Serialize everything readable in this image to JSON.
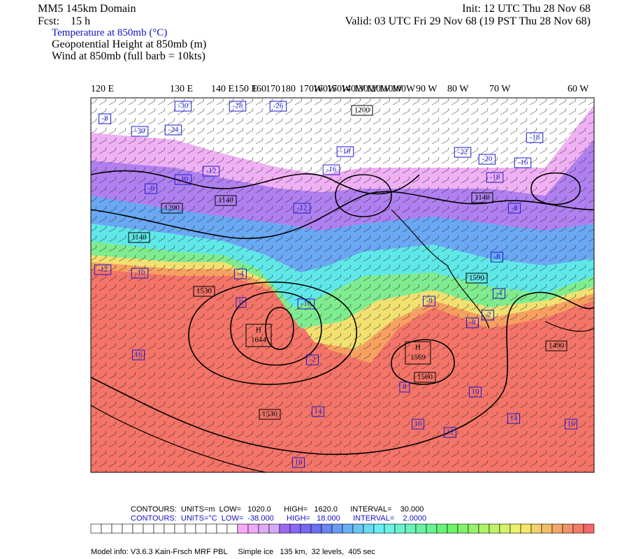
{
  "header": {
    "domain": "MM5 145km Domain",
    "forecast": "Fcst:    15 h",
    "init": "Init: 12 UTC Thu 28 Nov 68",
    "valid": "Valid: 03 UTC Fri 29 Nov 68 (19 PST Thu 28 Nov 68)",
    "fields": [
      "Temperature at 850mb (°C)",
      "Geopotential Height at 850mb (m)",
      "Wind at 850mb (full barb = 10kts)"
    ]
  },
  "map": {
    "longitude_labels": [
      "120 E",
      "130 E",
      "140 E",
      "150 E",
      "160",
      "170",
      "180",
      "170W",
      "160W",
      "150W",
      "140W",
      "130W",
      "120W",
      "110W",
      "100W",
      "90 W",
      "80 W",
      "70 W",
      "60 W"
    ],
    "height_labels": [
      "1200",
      "1140",
      "1200",
      "1140",
      "1140",
      "1530",
      "1590",
      "1560",
      "1530",
      "1490"
    ],
    "highs": [
      {
        "symbol": "H",
        "value": "1644"
      },
      {
        "symbol": "H",
        "value": "1569"
      }
    ],
    "temperature_labels": [
      "-30",
      "-28",
      "-26",
      "-8",
      "-30",
      "-24",
      "-18",
      "-16",
      "-22",
      "-20",
      "-16",
      "-18",
      "-12",
      "-6",
      "-10",
      "-12",
      "-18",
      "-8",
      "-12",
      "-10",
      "-4",
      "0",
      "-10",
      "-8",
      "-4",
      "-8",
      "-8",
      "-2",
      "16",
      "-2",
      "8",
      "10",
      "14",
      "14",
      "16",
      "10",
      "12",
      "16"
    ]
  },
  "footer": {
    "contours_height": "CONTOURS:  UNITS=m  LOW=   1020.0      HIGH=   1620.0      INTERVAL=    30.000",
    "contours_temperature": "CONTOURS:  UNITS=°C  LOW=  -38.000      HIGH=   18.000      INTERVAL=    2.0000",
    "model_info": "Model info: V3.6.3 Kain-Frsch MRF PBL     Simple ice   135 km,  32 levels,  405 sec"
  }
}
